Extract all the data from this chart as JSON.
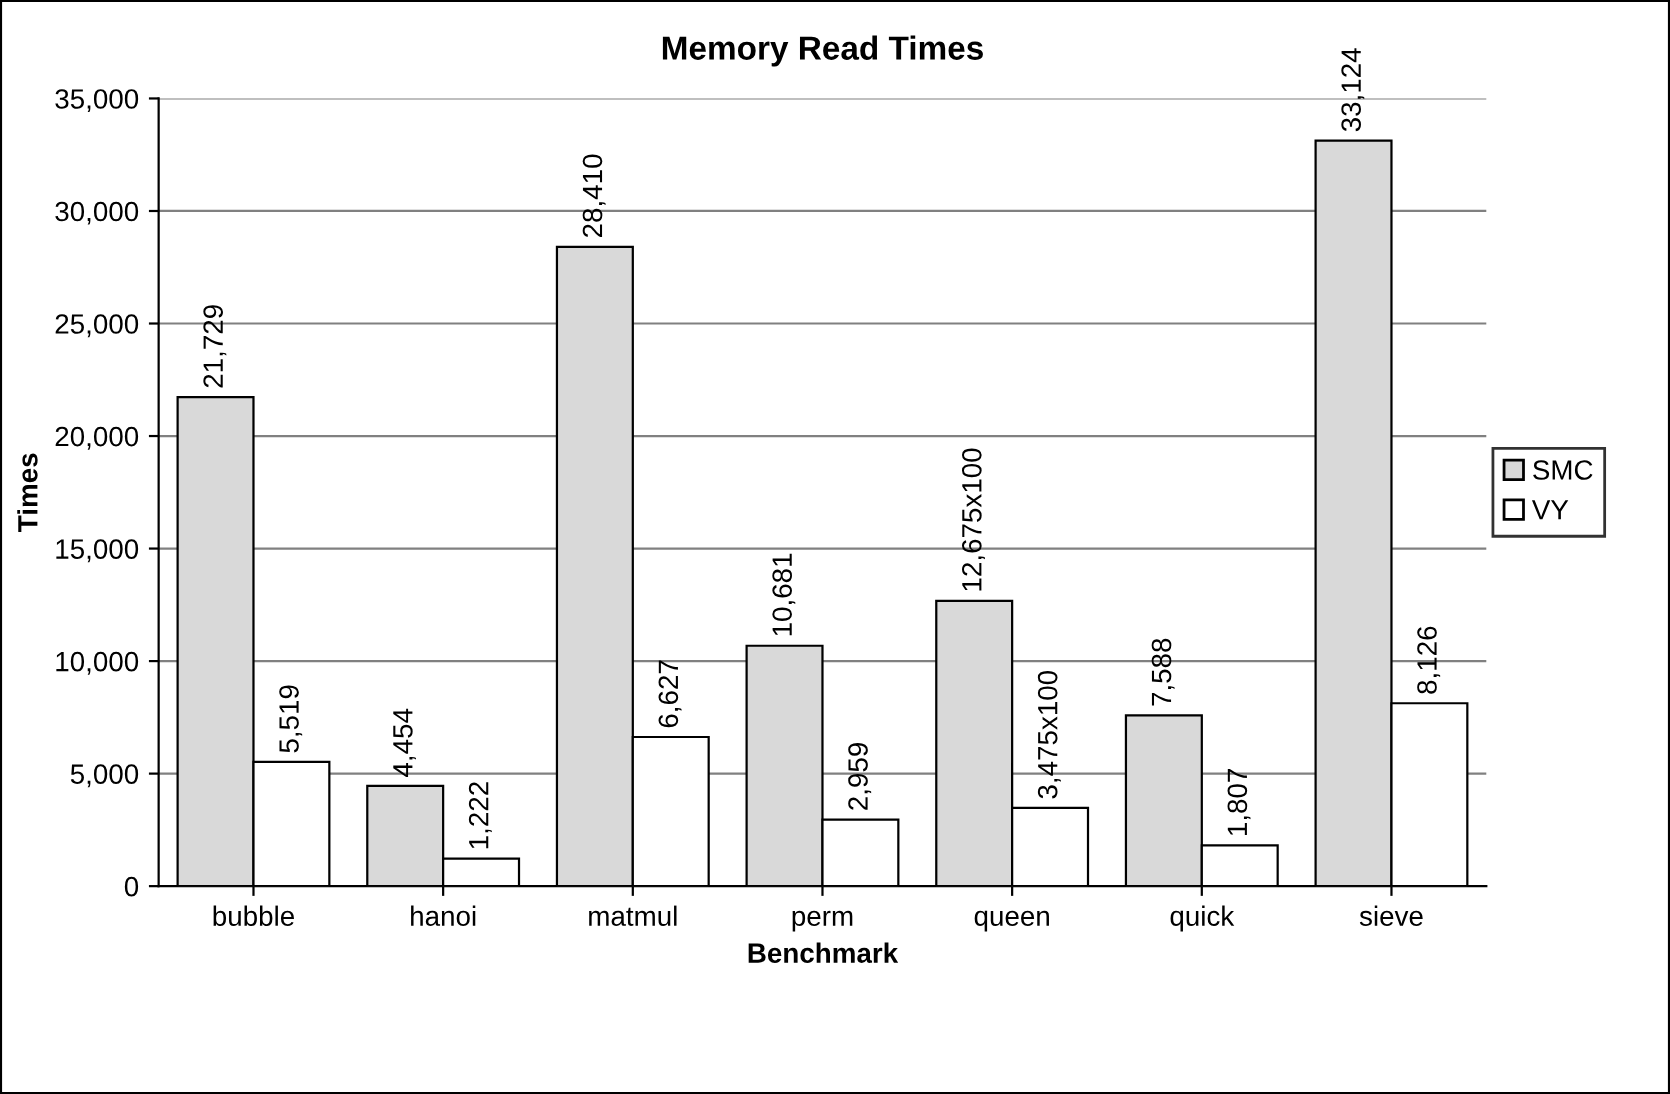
{
  "chart_data": {
    "type": "bar",
    "title": "Memory Read Times",
    "xlabel": "Benchmark",
    "ylabel": "Times",
    "categories": [
      "bubble",
      "hanoi",
      "matmul",
      "perm",
      "queen",
      "quick",
      "sieve"
    ],
    "series": [
      {
        "name": "SMC",
        "color": "#d9d9d9",
        "values": [
          21729,
          4454,
          28410,
          10681,
          12675,
          7588,
          33124
        ],
        "value_labels": [
          "21,729",
          "4,454",
          "28,410",
          "10,681",
          "12,675x100",
          "7,588",
          "33,124"
        ]
      },
      {
        "name": "VY",
        "color": "#ffffff",
        "values": [
          5519,
          1222,
          6627,
          2959,
          3475,
          1807,
          8126
        ],
        "value_labels": [
          "5,519",
          "1,222",
          "6,627",
          "2,959",
          "3,475x100",
          "1,807",
          "8,126"
        ]
      }
    ],
    "ylim": [
      0,
      35000
    ],
    "yticks": [
      {
        "value": 0,
        "label": "0"
      },
      {
        "value": 5000,
        "label": "5,000"
      },
      {
        "value": 10000,
        "label": "10,000"
      },
      {
        "value": 15000,
        "label": "15,000"
      },
      {
        "value": 20000,
        "label": "20,000"
      },
      {
        "value": 25000,
        "label": "25,000"
      },
      {
        "value": 30000,
        "label": "30,000"
      },
      {
        "value": 35000,
        "label": "35,000"
      }
    ],
    "grid": "y",
    "legend": "right"
  }
}
